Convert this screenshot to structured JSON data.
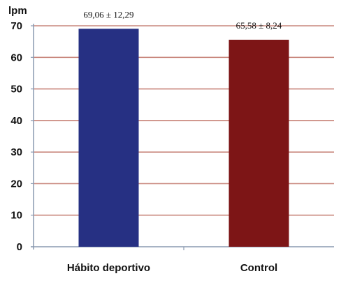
{
  "chart_data": {
    "type": "bar",
    "categories": [
      "Hábito deportivo",
      "Control"
    ],
    "values": [
      69.06,
      65.58
    ],
    "data_labels": [
      "69,06 ± 12,29",
      "65,58 ± 8,24"
    ],
    "ylabel": "lpm",
    "xlabel": "",
    "title": "",
    "ylim": [
      0,
      70
    ],
    "yticks": [
      0,
      10,
      20,
      30,
      40,
      50,
      60,
      70
    ],
    "grid": true,
    "legend": "none",
    "colors": {
      "bars": [
        "#263083",
        "#7d1516"
      ],
      "gridline": "#c9877d",
      "axis": "#8a9ab0"
    }
  }
}
